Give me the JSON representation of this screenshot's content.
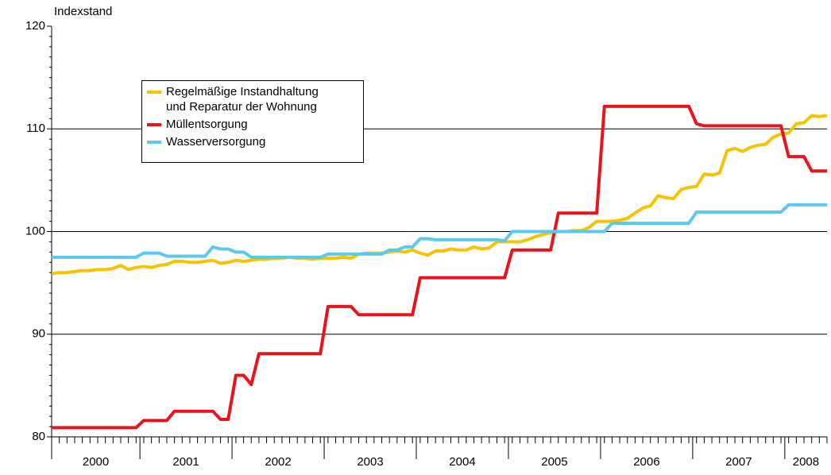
{
  "chart_data": {
    "type": "line",
    "y_label": "Indexstand",
    "categories": [
      null,
      null,
      null,
      null,
      null,
      null,
      null,
      null,
      null,
      null,
      null,
      null,
      null,
      null,
      null,
      null,
      null,
      null,
      null,
      null,
      null,
      null,
      null,
      null,
      null,
      null,
      null,
      null,
      null,
      null,
      null,
      null,
      null,
      null,
      null,
      null,
      null,
      null,
      null,
      null,
      null,
      null,
      null,
      null,
      null,
      null,
      null,
      null,
      null,
      null,
      null,
      null,
      null,
      null,
      null,
      null,
      null,
      null,
      null,
      null,
      null,
      null,
      null,
      null,
      null,
      null,
      null,
      null,
      null,
      null,
      null,
      null,
      null,
      null,
      null,
      null,
      null,
      null,
      null,
      null,
      null,
      null,
      null,
      null,
      null,
      null,
      null,
      null,
      null,
      null,
      null,
      null,
      null,
      null,
      null,
      null,
      null,
      null,
      null,
      null,
      null,
      null
    ],
    "x_groups": [
      "2000",
      "2001",
      "2002",
      "2003",
      "2004",
      "2005",
      "2006",
      "2007",
      "2008"
    ],
    "ylim": [
      80,
      120
    ],
    "yticks": [
      80,
      90,
      100,
      110,
      120
    ],
    "grid": true,
    "series": [
      {
        "name": "Regelmäßige Instandhaltung\nund Reparatur der Wohnung",
        "color": "#f5c400",
        "values": [
          95.9,
          96.0,
          96.0,
          96.1,
          96.2,
          96.2,
          96.3,
          96.3,
          96.4,
          96.7,
          96.3,
          96.5,
          96.6,
          96.5,
          96.7,
          96.8,
          97.1,
          97.1,
          97.0,
          97.0,
          97.1,
          97.2,
          96.9,
          97.0,
          97.2,
          97.1,
          97.2,
          97.3,
          97.3,
          97.4,
          97.4,
          97.5,
          97.4,
          97.4,
          97.3,
          97.4,
          97.4,
          97.4,
          97.5,
          97.4,
          97.8,
          97.9,
          97.9,
          97.9,
          98.0,
          98.1,
          98.0,
          98.2,
          97.9,
          97.7,
          98.1,
          98.1,
          98.3,
          98.2,
          98.2,
          98.5,
          98.3,
          98.4,
          99.0,
          99.0,
          99.0,
          99.0,
          99.2,
          99.5,
          99.7,
          99.9,
          100.0,
          100.0,
          100.1,
          100.1,
          100.4,
          101.0,
          101.0,
          101.0,
          101.1,
          101.3,
          101.8,
          102.3,
          102.5,
          103.5,
          103.3,
          103.2,
          104.1,
          104.3,
          104.4,
          105.6,
          105.5,
          105.7,
          107.9,
          108.1,
          107.8,
          108.2,
          108.4,
          108.5,
          109.2,
          109.5,
          109.6,
          110.5,
          110.6,
          111.3,
          111.2,
          111.3
        ]
      },
      {
        "name": "Müllentsorgung",
        "color": "#e8141b",
        "values": [
          80.9,
          80.9,
          80.9,
          80.9,
          80.9,
          80.9,
          80.9,
          80.9,
          80.9,
          80.9,
          80.9,
          80.9,
          81.6,
          81.6,
          81.6,
          81.6,
          82.5,
          82.5,
          82.5,
          82.5,
          82.5,
          82.5,
          81.7,
          81.7,
          86.0,
          86.0,
          85.1,
          88.1,
          88.1,
          88.1,
          88.1,
          88.1,
          88.1,
          88.1,
          88.1,
          88.1,
          92.7,
          92.7,
          92.7,
          92.7,
          91.9,
          91.9,
          91.9,
          91.9,
          91.9,
          91.9,
          91.9,
          91.9,
          95.5,
          95.5,
          95.5,
          95.5,
          95.5,
          95.5,
          95.5,
          95.5,
          95.5,
          95.5,
          95.5,
          95.5,
          98.2,
          98.2,
          98.2,
          98.2,
          98.2,
          98.2,
          101.8,
          101.8,
          101.8,
          101.8,
          101.8,
          101.8,
          112.2,
          112.2,
          112.2,
          112.2,
          112.2,
          112.2,
          112.2,
          112.2,
          112.2,
          112.2,
          112.2,
          112.2,
          110.5,
          110.3,
          110.3,
          110.3,
          110.3,
          110.3,
          110.3,
          110.3,
          110.3,
          110.3,
          110.3,
          110.3,
          107.3,
          107.3,
          107.3,
          105.9,
          105.9,
          105.9
        ]
      },
      {
        "name": "Wasserversorgung",
        "color": "#5bc8f0",
        "values": [
          97.5,
          97.5,
          97.5,
          97.5,
          97.5,
          97.5,
          97.5,
          97.5,
          97.5,
          97.5,
          97.5,
          97.5,
          97.9,
          97.9,
          97.9,
          97.6,
          97.6,
          97.6,
          97.6,
          97.6,
          97.6,
          98.5,
          98.3,
          98.3,
          98.0,
          98.0,
          97.5,
          97.5,
          97.5,
          97.5,
          97.5,
          97.5,
          97.5,
          97.5,
          97.5,
          97.5,
          97.8,
          97.8,
          97.8,
          97.8,
          97.8,
          97.8,
          97.8,
          97.8,
          98.2,
          98.2,
          98.5,
          98.5,
          99.3,
          99.3,
          99.2,
          99.2,
          99.2,
          99.2,
          99.2,
          99.2,
          99.2,
          99.2,
          99.2,
          99.1,
          100.0,
          100.0,
          100.0,
          100.0,
          100.0,
          100.0,
          100.0,
          100.0,
          100.0,
          100.0,
          100.0,
          100.0,
          100.0,
          100.8,
          100.8,
          100.8,
          100.8,
          100.8,
          100.8,
          100.8,
          100.8,
          100.8,
          100.8,
          100.8,
          101.9,
          101.9,
          101.9,
          101.9,
          101.9,
          101.9,
          101.9,
          101.9,
          101.9,
          101.9,
          101.9,
          101.9,
          102.6,
          102.6,
          102.6,
          102.6,
          102.6,
          102.6
        ]
      }
    ]
  }
}
